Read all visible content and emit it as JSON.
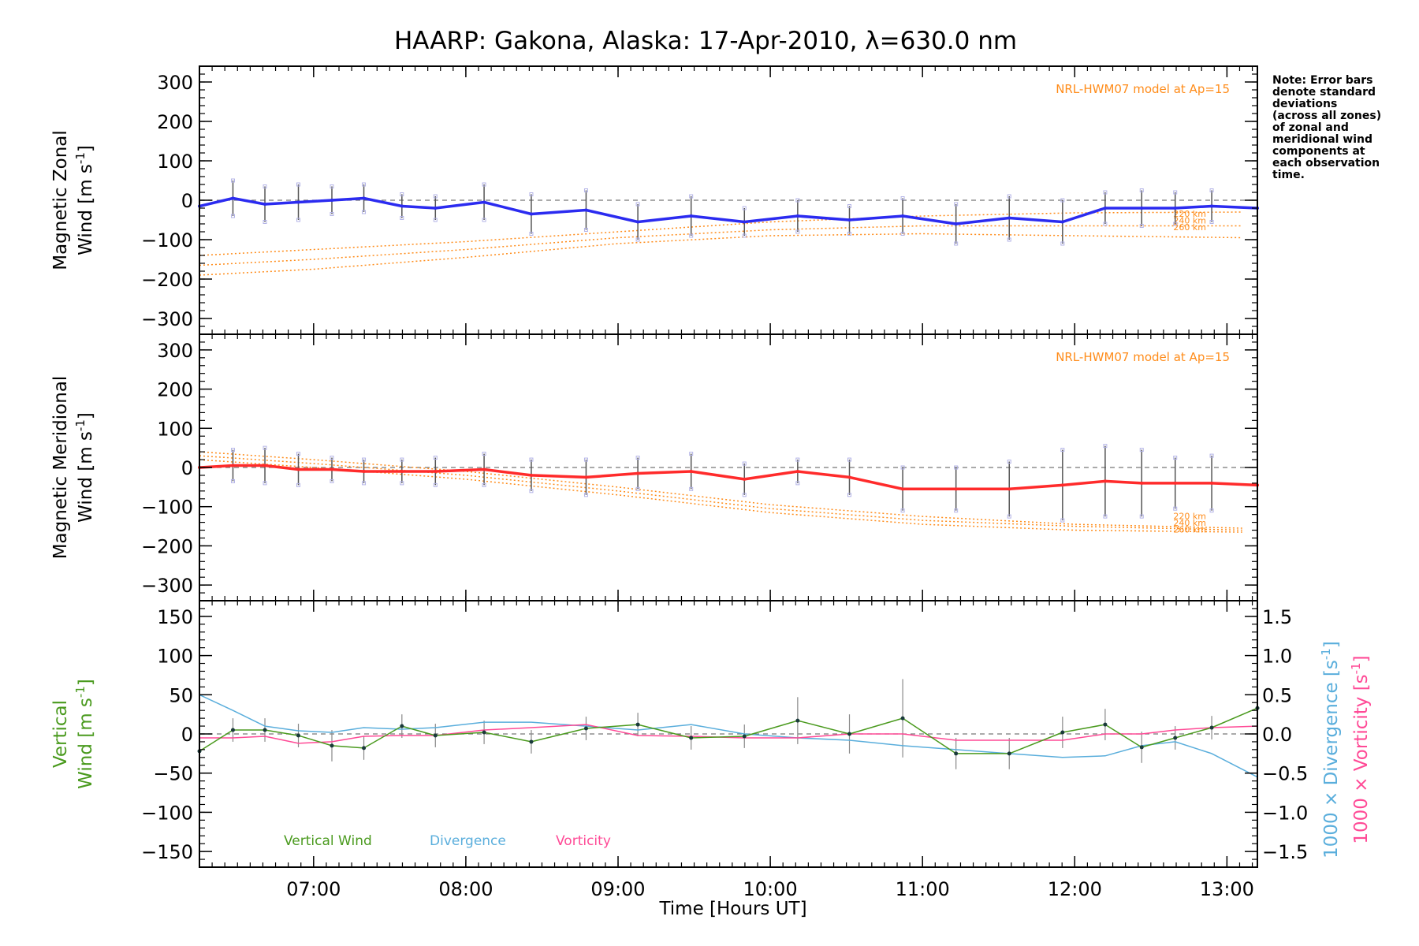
{
  "colors": {
    "zonal": "#2b2bf0",
    "meridional": "#ff2b2b",
    "model": "#ff8c1a",
    "vertical": "#4a9a1e",
    "divergence": "#5aaedc",
    "vorticity": "#ff4a96",
    "errorbar": "#555555",
    "zone_points": "#b3b3e6"
  },
  "title": "HAARP: Gakona,  Alaska: 17-Apr-2010, λ=630.0 nm",
  "note_lines": [
    "Note: Error bars",
    "denote standard",
    "deviations",
    "(across all zones)",
    "of zonal and",
    "meridional wind",
    "components at",
    "each observation",
    "time."
  ],
  "x_axis": {
    "label": "Time [Hours UT]",
    "range": [
      6.25,
      13.2
    ],
    "tick_values": [
      7,
      8,
      9,
      10,
      11,
      12,
      13
    ],
    "tick_labels": [
      "07:00",
      "08:00",
      "09:00",
      "10:00",
      "11:00",
      "12:00",
      "13:00"
    ]
  },
  "chart_data": [
    {
      "type": "line",
      "panel": "zonal",
      "ylabel_line1": "Magnetic Zonal",
      "ylabel_line2": "Wind [m s",
      "ylabel_sup": "-1",
      "ylabel_close": "]",
      "ylim": [
        -340,
        340
      ],
      "y_ticks": [
        -300,
        -200,
        -100,
        0,
        100,
        200,
        300
      ],
      "y_tick_labels": [
        "−300",
        "−200",
        "−100",
        "0",
        "100",
        "200",
        "300"
      ],
      "model_label": "NRL-HWM07 model at Ap=15",
      "altitude_labels": [
        "220 km",
        "240 km",
        "260 km"
      ],
      "x": [
        6.25,
        6.47,
        6.68,
        6.9,
        7.12,
        7.33,
        7.58,
        7.8,
        8.12,
        8.43,
        8.79,
        9.13,
        9.48,
        9.83,
        10.18,
        10.52,
        10.87,
        11.22,
        11.57,
        11.92,
        12.2,
        12.44,
        12.66,
        12.9,
        13.2
      ],
      "values": [
        -15,
        5,
        -10,
        -5,
        0,
        5,
        -15,
        -20,
        -5,
        -35,
        -25,
        -55,
        -40,
        -55,
        -40,
        -50,
        -40,
        -60,
        -45,
        -55,
        -20,
        -20,
        -20,
        -15,
        -20
      ],
      "errors": [
        0,
        45,
        45,
        45,
        35,
        35,
        30,
        30,
        45,
        50,
        50,
        45,
        50,
        35,
        40,
        35,
        45,
        50,
        55,
        55,
        40,
        45,
        40,
        40,
        0
      ],
      "model_series": [
        {
          "name": "220 km",
          "x": [
            6.25,
            7,
            8,
            9,
            10,
            11,
            12,
            13.1
          ],
          "values": [
            -140,
            -125,
            -105,
            -80,
            -55,
            -40,
            -32,
            -30
          ]
        },
        {
          "name": "240 km",
          "x": [
            6.25,
            7,
            8,
            9,
            10,
            11,
            12,
            13.1
          ],
          "values": [
            -165,
            -150,
            -125,
            -95,
            -75,
            -65,
            -65,
            -65
          ]
        },
        {
          "name": "260 km",
          "x": [
            6.25,
            7,
            8,
            9,
            10,
            11,
            12,
            13.1
          ],
          "values": [
            -190,
            -175,
            -145,
            -110,
            -90,
            -85,
            -90,
            -95
          ]
        }
      ]
    },
    {
      "type": "line",
      "panel": "meridional",
      "ylabel_line1": "Magnetic Meridional",
      "ylabel_line2": "Wind [m s",
      "ylabel_sup": "-1",
      "ylabel_close": "]",
      "ylim": [
        -340,
        340
      ],
      "y_ticks": [
        -300,
        -200,
        -100,
        0,
        100,
        200,
        300
      ],
      "y_tick_labels": [
        "−300",
        "−200",
        "−100",
        "0",
        "100",
        "200",
        "300"
      ],
      "model_label": "NRL-HWM07 model at Ap=15",
      "altitude_labels": [
        "220 km",
        "240 km",
        "260 km"
      ],
      "x": [
        6.25,
        6.47,
        6.68,
        6.9,
        7.12,
        7.33,
        7.58,
        7.8,
        8.12,
        8.43,
        8.79,
        9.13,
        9.48,
        9.83,
        10.18,
        10.52,
        10.87,
        11.22,
        11.57,
        11.92,
        12.2,
        12.44,
        12.66,
        12.9,
        13.2
      ],
      "values": [
        0,
        5,
        5,
        -5,
        -5,
        -10,
        -10,
        -10,
        -5,
        -20,
        -25,
        -15,
        -10,
        -30,
        -10,
        -25,
        -55,
        -55,
        -55,
        -45,
        -35,
        -40,
        -40,
        -40,
        -45
      ],
      "errors": [
        0,
        40,
        45,
        40,
        30,
        30,
        30,
        35,
        40,
        40,
        45,
        40,
        45,
        40,
        30,
        45,
        55,
        55,
        70,
        90,
        90,
        85,
        65,
        70,
        0
      ],
      "model_series": [
        {
          "name": "220 km",
          "x": [
            6.25,
            7,
            8,
            9,
            10,
            11,
            12,
            13.1
          ],
          "values": [
            40,
            20,
            -10,
            -50,
            -95,
            -125,
            -145,
            -155
          ]
        },
        {
          "name": "240 km",
          "x": [
            6.25,
            7,
            8,
            9,
            10,
            11,
            12,
            13.1
          ],
          "values": [
            30,
            10,
            -20,
            -60,
            -105,
            -135,
            -150,
            -160
          ]
        },
        {
          "name": "260 km",
          "x": [
            6.25,
            7,
            8,
            9,
            10,
            11,
            12,
            13.1
          ],
          "values": [
            20,
            0,
            -30,
            -70,
            -115,
            -145,
            -160,
            -165
          ]
        }
      ]
    },
    {
      "type": "line",
      "panel": "vertical",
      "ylabel_line1": "Vertical",
      "ylabel_line2": "Wind [m s",
      "ylabel_sup": "-1",
      "ylabel_close": "]",
      "ylim": [
        -170,
        170
      ],
      "y_ticks": [
        -150,
        -100,
        -50,
        0,
        50,
        100,
        150
      ],
      "y_tick_labels": [
        "−150",
        "−100",
        "−50",
        "0",
        "50",
        "100",
        "150"
      ],
      "y2lim": [
        -1.7,
        1.7
      ],
      "y2_ticks": [
        -1.5,
        -1.0,
        -0.5,
        0.0,
        0.5,
        1.0,
        1.5
      ],
      "y2_tick_labels": [
        "−1.5",
        "−1.0",
        "−0.5",
        "0.0",
        "0.5",
        "1.0",
        "1.5"
      ],
      "y2label_div_text": "1000 × Divergence [s",
      "y2label_vort_text": "1000 × Vorticity [s",
      "y2label_sup": "-1",
      "y2label_close": "]",
      "legend": [
        "Vertical Wind",
        "Divergence",
        "Vorticity"
      ],
      "vertical": {
        "x": [
          6.25,
          6.47,
          6.68,
          6.9,
          7.12,
          7.33,
          7.58,
          7.8,
          8.12,
          8.43,
          8.79,
          9.13,
          9.48,
          9.83,
          10.18,
          10.52,
          10.87,
          11.22,
          11.57,
          11.92,
          12.2,
          12.44,
          12.66,
          12.9,
          13.2
        ],
        "values": [
          -22,
          5,
          5,
          -2,
          -15,
          -18,
          10,
          -2,
          2,
          -10,
          7,
          12,
          -5,
          -3,
          17,
          0,
          20,
          -25,
          -25,
          2,
          12,
          -17,
          -5,
          8,
          33
        ],
        "errors": [
          0,
          15,
          15,
          15,
          20,
          15,
          15,
          15,
          15,
          15,
          15,
          15,
          15,
          15,
          30,
          25,
          50,
          20,
          20,
          20,
          20,
          20,
          15,
          15,
          0
        ]
      },
      "divergence": {
        "x": [
          6.25,
          6.47,
          6.68,
          6.9,
          7.12,
          7.33,
          7.58,
          7.8,
          8.12,
          8.43,
          8.79,
          9.13,
          9.48,
          9.83,
          10.18,
          10.52,
          10.87,
          11.22,
          11.57,
          11.92,
          12.2,
          12.44,
          12.66,
          12.9,
          13.2
        ],
        "values": [
          0.5,
          0.3,
          0.1,
          0.04,
          0.02,
          0.08,
          0.06,
          0.08,
          0.15,
          0.15,
          0.1,
          0.05,
          0.12,
          0.0,
          -0.05,
          -0.08,
          -0.15,
          -0.2,
          -0.25,
          -0.3,
          -0.28,
          -0.15,
          -0.1,
          -0.25,
          -0.55
        ]
      },
      "vorticity": {
        "x": [
          6.25,
          6.47,
          6.68,
          6.9,
          7.12,
          7.33,
          7.58,
          7.8,
          8.12,
          8.43,
          8.79,
          9.13,
          9.48,
          9.83,
          10.18,
          10.52,
          10.87,
          11.22,
          11.57,
          11.92,
          12.2,
          12.44,
          12.66,
          12.9,
          13.2
        ],
        "values": [
          -0.05,
          -0.05,
          -0.03,
          -0.12,
          -0.1,
          -0.03,
          -0.02,
          -0.02,
          0.05,
          0.08,
          0.12,
          -0.02,
          -0.03,
          -0.05,
          -0.05,
          0.0,
          0.0,
          -0.08,
          -0.08,
          -0.08,
          0.0,
          0.0,
          0.05,
          0.08,
          0.1
        ]
      }
    }
  ]
}
